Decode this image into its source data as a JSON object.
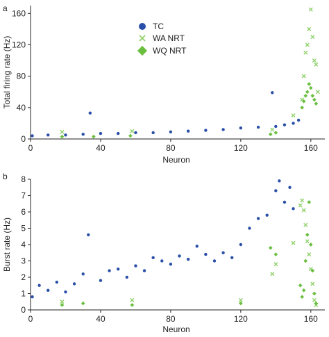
{
  "colors": {
    "tc": "#2a4fa8",
    "wa_nrt": "#8fd16a",
    "wq_nrt": "#6abf3f",
    "axis": "#222222"
  },
  "chart_data": [
    {
      "panel_label": "a",
      "type": "scatter",
      "xlabel": "Neuron",
      "ylabel": "Total firing rate (Hz)",
      "xlim": [
        0,
        168
      ],
      "ylim": [
        0,
        170
      ],
      "xticks": [
        0,
        40,
        80,
        120,
        160
      ],
      "yticks": [
        0,
        40,
        80,
        120,
        160
      ],
      "legend": {
        "placement": "top-center",
        "entries": [
          {
            "label": "TC",
            "marker": "circle",
            "color": "#2a4fa8"
          },
          {
            "label": "WA NRT",
            "marker": "x",
            "color": "#8fd16a"
          },
          {
            "label": "WQ NRT",
            "marker": "diamond",
            "color": "#6abf3f"
          }
        ]
      },
      "series": [
        {
          "name": "TC",
          "color": "#2a4fa8",
          "x": [
            1,
            10,
            20,
            30,
            34,
            40,
            50,
            60,
            70,
            80,
            90,
            100,
            110,
            120,
            130,
            138,
            140,
            145,
            150,
            153
          ],
          "y": [
            4,
            5,
            5,
            6,
            33,
            7,
            7,
            8,
            8,
            9,
            10,
            11,
            12,
            14,
            15,
            59,
            16,
            18,
            20,
            24
          ]
        },
        {
          "name": "WA NRT",
          "color": "#8fd16a",
          "x": [
            18,
            58,
            138,
            150,
            155,
            156,
            157,
            158,
            159,
            160,
            161,
            162,
            163,
            164
          ],
          "y": [
            9,
            10,
            12,
            30,
            50,
            80,
            110,
            120,
            140,
            165,
            130,
            100,
            95,
            60
          ]
        },
        {
          "name": "WQ NRT",
          "color": "#6abf3f",
          "x": [
            18,
            36,
            57,
            137,
            140,
            155,
            156,
            157,
            158,
            159,
            160,
            161,
            162,
            163
          ],
          "y": [
            3,
            3,
            4,
            6,
            8,
            40,
            48,
            55,
            60,
            70,
            65,
            55,
            50,
            45
          ]
        }
      ]
    },
    {
      "panel_label": "b",
      "type": "scatter",
      "xlabel": "Neuron",
      "ylabel": "Burst rate (Hz)",
      "xlim": [
        0,
        168
      ],
      "ylim": [
        0,
        8
      ],
      "xticks": [
        0,
        40,
        80,
        120,
        160
      ],
      "yticks": [
        0,
        1,
        2,
        3,
        4,
        5,
        6,
        7,
        8
      ],
      "series": [
        {
          "name": "TC",
          "color": "#2a4fa8",
          "x": [
            1,
            5,
            10,
            15,
            20,
            25,
            30,
            33,
            40,
            45,
            50,
            55,
            60,
            65,
            70,
            75,
            80,
            85,
            90,
            95,
            100,
            105,
            110,
            115,
            120,
            125,
            130,
            135,
            140,
            142,
            145,
            148,
            150
          ],
          "y": [
            0.8,
            1.5,
            1.2,
            1.7,
            1.1,
            1.6,
            2.2,
            4.6,
            1.8,
            2.4,
            2.5,
            2.0,
            2.7,
            2.4,
            3.2,
            3.0,
            2.8,
            3.3,
            3.1,
            3.9,
            3.4,
            3.0,
            3.5,
            3.2,
            4.0,
            5.0,
            5.6,
            5.8,
            7.3,
            7.9,
            6.6,
            7.5,
            6.2
          ]
        },
        {
          "name": "WA NRT",
          "color": "#8fd16a",
          "x": [
            18,
            58,
            120,
            138,
            140,
            150,
            154,
            155,
            156,
            157,
            158,
            159,
            160,
            161,
            162,
            163
          ],
          "y": [
            0.5,
            0.6,
            0.6,
            2.2,
            2.8,
            4.1,
            6.4,
            6.7,
            6.1,
            5.2,
            4.2,
            3.4,
            2.5,
            1.6,
            0.6,
            0.3
          ]
        },
        {
          "name": "WQ NRT",
          "color": "#6abf3f",
          "x": [
            18,
            30,
            58,
            120,
            137,
            140,
            154,
            155,
            156,
            157,
            158,
            159,
            160,
            161,
            162,
            163
          ],
          "y": [
            0.3,
            0.4,
            0.3,
            0.4,
            3.8,
            3.4,
            1.5,
            0.8,
            1.2,
            3.0,
            4.6,
            6.6,
            4.0,
            2.4,
            1.0,
            0.4
          ]
        }
      ]
    }
  ]
}
